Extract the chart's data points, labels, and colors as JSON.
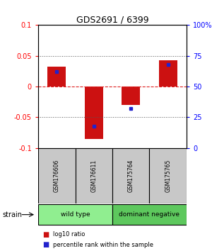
{
  "title": "GDS2691 / 6399",
  "samples": [
    "GSM176606",
    "GSM176611",
    "GSM175764",
    "GSM175765"
  ],
  "log10_ratios": [
    0.033,
    -0.085,
    -0.03,
    0.043
  ],
  "percentile_ranks": [
    62,
    18,
    32,
    68
  ],
  "groups": [
    {
      "label": "wild type",
      "samples": [
        0,
        1
      ],
      "color": "#90EE90"
    },
    {
      "label": "dominant negative",
      "samples": [
        2,
        3
      ],
      "color": "#5DC85D"
    }
  ],
  "ylim_left": [
    -0.1,
    0.1
  ],
  "ylim_right": [
    0,
    100
  ],
  "yticks_left": [
    -0.1,
    -0.05,
    0,
    0.05,
    0.1
  ],
  "yticks_right": [
    0,
    25,
    50,
    75,
    100
  ],
  "ytick_labels_left": [
    "-0.1",
    "-0.05",
    "0",
    "0.05",
    "0.1"
  ],
  "ytick_labels_right": [
    "0",
    "25",
    "50",
    "75",
    "100%"
  ],
  "bar_color": "#CC1111",
  "dot_color": "#2222CC",
  "sample_box_color": "#C8C8C8",
  "group_label": "strain",
  "legend_bar": "log10 ratio",
  "legend_dot": "percentile rank within the sample",
  "bar_width": 0.5,
  "hline_zero_color": "#DD2222",
  "hline_dotted_color": "#555555"
}
